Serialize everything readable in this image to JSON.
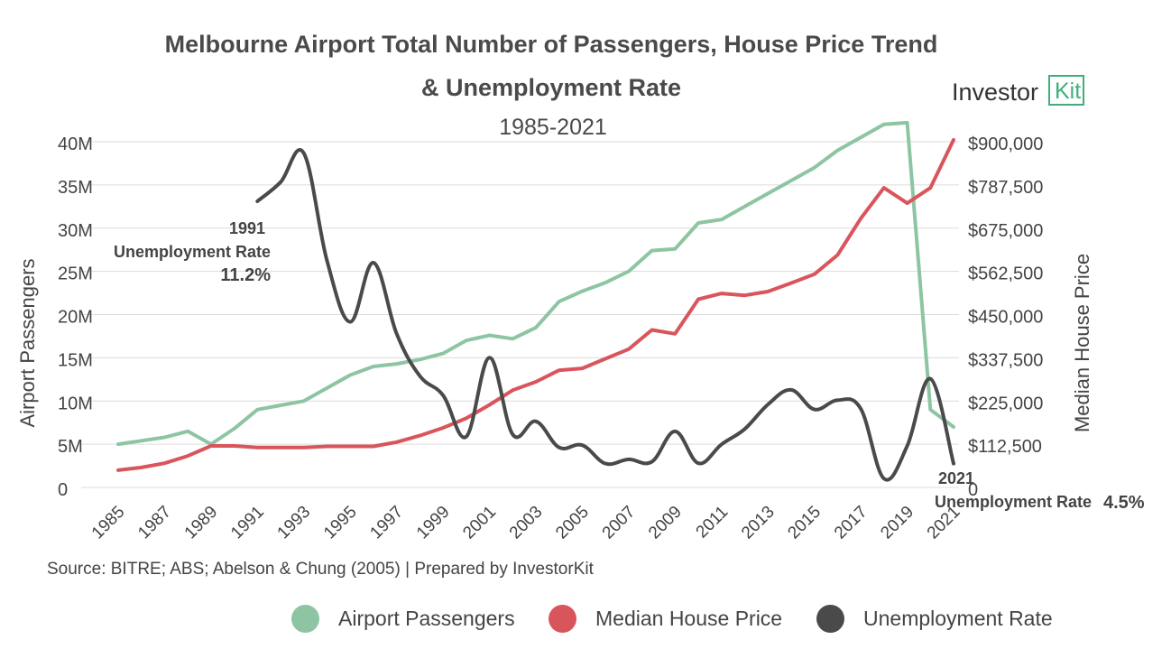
{
  "title_line1": "Melbourne Airport Total Number of Passengers, House Price Trend",
  "title_line2": "& Unemployment Rate",
  "subtitle": "1985-2021",
  "logo": {
    "text": "Investor",
    "box_text": "Kit",
    "color": "#3db07a"
  },
  "source": "Source: BITRE; ABS; Abelson & Chung (2005) | Prepared by InvestorKit",
  "chart_data": {
    "type": "line",
    "x": [
      1985,
      1986,
      1987,
      1988,
      1989,
      1990,
      1991,
      1992,
      1993,
      1994,
      1995,
      1996,
      1997,
      1998,
      1999,
      2000,
      2001,
      2002,
      2003,
      2004,
      2005,
      2006,
      2007,
      2008,
      2009,
      2010,
      2011,
      2012,
      2013,
      2014,
      2015,
      2016,
      2017,
      2018,
      2019,
      2020,
      2021
    ],
    "x_tick_labels": [
      "1985",
      "1987",
      "1989",
      "1991",
      "1993",
      "1995",
      "1997",
      "1999",
      "2001",
      "2003",
      "2005",
      "2007",
      "2009",
      "2011",
      "2013",
      "2015",
      "2017",
      "2019",
      "2021"
    ],
    "left_axis": {
      "label": "Airport Passengers",
      "ylim": [
        0,
        40000000
      ],
      "tick_labels": [
        "0",
        "5M",
        "10M",
        "15M",
        "20M",
        "25M",
        "30M",
        "35M",
        "40M"
      ]
    },
    "right_axis": {
      "label": "Median House Price",
      "ylim": [
        0,
        900000
      ],
      "tick_labels": [
        "0",
        "$112,500",
        "$225,000",
        "$337,500",
        "$450,000",
        "$562,500",
        "$675,000",
        "$787,500",
        "$900,000"
      ]
    },
    "grid": true,
    "legend_position": "bottom",
    "series": [
      {
        "name": "Airport Passengers",
        "axis": "left",
        "color": "#8dc5a3",
        "values": [
          5000000,
          5400000,
          5800000,
          6500000,
          5000000,
          6800000,
          9000000,
          9500000,
          10000000,
          11500000,
          13000000,
          14000000,
          14300000,
          14800000,
          15500000,
          17000000,
          17600000,
          17200000,
          18500000,
          21500000,
          22700000,
          23700000,
          25000000,
          27400000,
          27600000,
          30600000,
          31000000,
          32500000,
          34000000,
          35500000,
          37000000,
          39000000,
          40500000,
          42000000,
          42200000,
          9000000,
          7000000
        ]
      },
      {
        "name": "Median House Price",
        "axis": "right",
        "color": "#d9555c",
        "values": [
          45000,
          52000,
          63000,
          82000,
          108000,
          108000,
          104000,
          104000,
          104000,
          107000,
          107000,
          107000,
          118000,
          135000,
          155000,
          180000,
          215000,
          253000,
          275000,
          305000,
          310000,
          335000,
          360000,
          410000,
          400000,
          490000,
          505000,
          500000,
          510000,
          532000,
          555000,
          605000,
          700000,
          780000,
          740000,
          780000,
          905000
        ]
      },
      {
        "name": "Unemployment Rate",
        "axis": "right",
        "color": "#4a4a4a",
        "values": [
          null,
          null,
          null,
          null,
          null,
          null,
          745000,
          795000,
          870000,
          590000,
          431000,
          585000,
          400000,
          290000,
          240000,
          132000,
          338000,
          138000,
          172000,
          104000,
          110000,
          62000,
          73000,
          67000,
          146000,
          63000,
          112000,
          152000,
          216000,
          254000,
          203000,
          227000,
          205000,
          23000,
          108000,
          283000,
          62000
        ]
      }
    ],
    "annotations": [
      {
        "year_label": "1991",
        "label": "Unemployment Rate",
        "value": "11.2%"
      },
      {
        "year_label": "2021",
        "label": "Unemployment Rate",
        "value": "4.5%"
      }
    ]
  }
}
